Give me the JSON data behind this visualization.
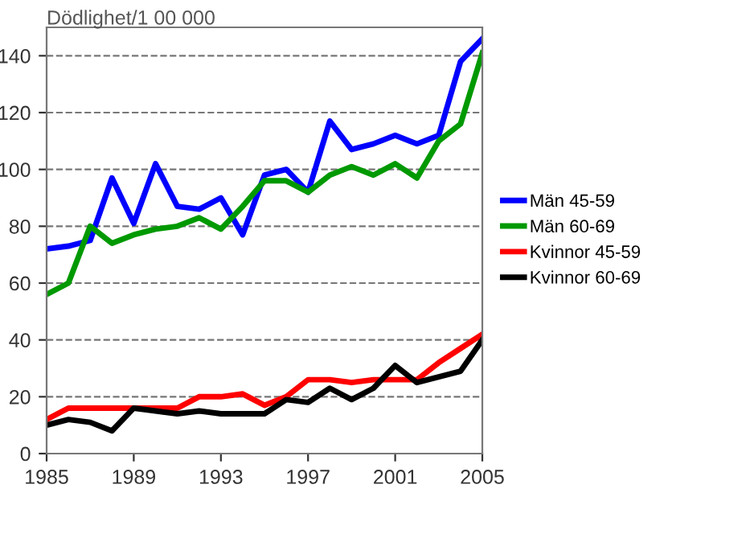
{
  "chart_data": {
    "type": "line",
    "ylabel": "Dödlighet/1 00 000",
    "x": [
      1985,
      1986,
      1987,
      1988,
      1989,
      1990,
      1991,
      1992,
      1993,
      1994,
      1995,
      1996,
      1997,
      1998,
      1999,
      2000,
      2001,
      2002,
      2003,
      2004,
      2005
    ],
    "series": [
      {
        "name": "Män 45-59",
        "color": "#0000ff",
        "values": [
          72,
          73,
          75,
          97,
          81,
          102,
          87,
          86,
          90,
          77,
          98,
          100,
          92,
          117,
          107,
          109,
          112,
          109,
          112,
          138,
          146
        ]
      },
      {
        "name": "Män 60-69",
        "color": "#009900",
        "values": [
          56,
          60,
          80,
          74,
          77,
          79,
          80,
          83,
          79,
          87,
          96,
          96,
          92,
          98,
          101,
          98,
          102,
          97,
          110,
          116,
          141
        ]
      },
      {
        "name": "Kvinnor 45-59",
        "color": "#ff0000",
        "values": [
          12,
          16,
          16,
          16,
          16,
          16,
          16,
          20,
          20,
          21,
          17,
          20,
          26,
          26,
          25,
          26,
          26,
          26,
          32,
          37,
          42
        ]
      },
      {
        "name": "Kvinnor 60-69",
        "color": "#000000",
        "values": [
          10,
          12,
          11,
          8,
          16,
          15,
          14,
          15,
          14,
          14,
          14,
          19,
          18,
          23,
          19,
          23,
          31,
          25,
          27,
          29,
          40
        ]
      }
    ],
    "xlim": [
      1985,
      2005
    ],
    "xticks": [
      1985,
      1989,
      1993,
      1997,
      2001,
      2005
    ],
    "ylim": [
      0,
      150
    ],
    "yticks": [
      0,
      20,
      40,
      60,
      80,
      100,
      120,
      140
    ],
    "grid": "y",
    "legend": "right",
    "marker": "none",
    "line_style": "solid"
  }
}
